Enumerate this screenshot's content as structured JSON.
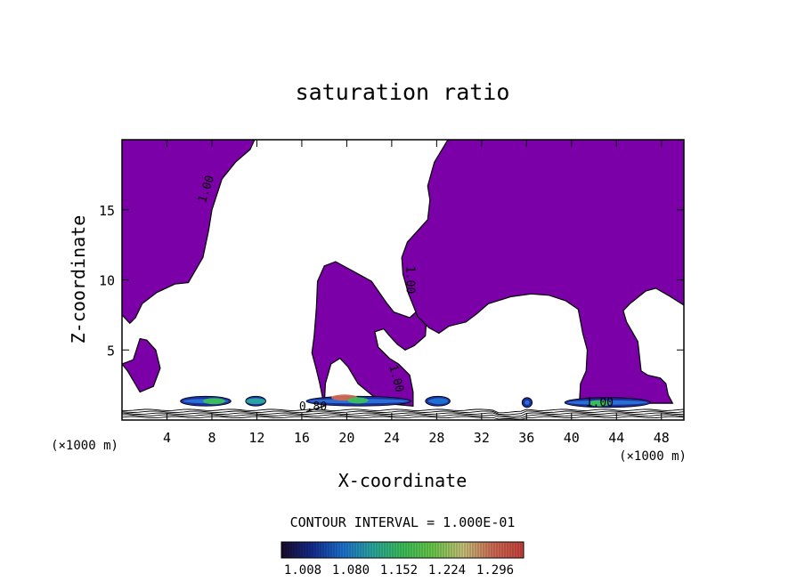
{
  "chart_data": {
    "type": "heatmap",
    "title": "saturation ratio",
    "xlabel": "X-coordinate",
    "ylabel": "Z-coordinate",
    "x_unit_left": "(×1000 m)",
    "x_unit_right": "(×1000 m)",
    "xlim": [
      0,
      50
    ],
    "ylim": [
      0,
      20
    ],
    "x_ticks": [
      4,
      8,
      12,
      16,
      20,
      24,
      28,
      32,
      36,
      40,
      44,
      48
    ],
    "y_ticks": [
      5,
      10,
      15
    ],
    "contour_interval_label": "CONTOUR INTERVAL = 1.000E-01",
    "colorbar": {
      "ticks": [
        "1.008",
        "1.080",
        "1.152",
        "1.224",
        "1.296"
      ],
      "colors": [
        "#1a0a2a",
        "#142b8c",
        "#1c6fd0",
        "#2aa7a0",
        "#3bbf5a",
        "#6ac84a",
        "#c7c27a",
        "#cf6a55",
        "#c8413a"
      ]
    },
    "contour_labels": [
      {
        "text": "1.00",
        "x": 7.8,
        "y": 16.4,
        "rot": -72
      },
      {
        "text": "1.00",
        "x": 25.3,
        "y": 10.0,
        "rot": 90
      },
      {
        "text": "1.00",
        "x": 24.1,
        "y": 2.9,
        "rot": 75
      },
      {
        "text": "0.80",
        "x": 17.0,
        "y": 0.7,
        "rot": 0
      },
      {
        "text": "1.00",
        "x": 42.5,
        "y": 1.0,
        "rot": 0
      }
    ],
    "region_color": "#7b00a8",
    "regions": [
      {
        "name": "upper-left",
        "points": [
          [
            0,
            20
          ],
          [
            11.8,
            20
          ],
          [
            11.4,
            19.3
          ],
          [
            10.1,
            18.4
          ],
          [
            8.9,
            17.2
          ],
          [
            8.0,
            15.0
          ],
          [
            7.7,
            13.5
          ],
          [
            7.2,
            11.6
          ],
          [
            5.9,
            9.8
          ],
          [
            4.7,
            9.7
          ],
          [
            3.1,
            9.1
          ],
          [
            1.8,
            8.3
          ],
          [
            1.2,
            7.3
          ],
          [
            0.7,
            6.9
          ],
          [
            0,
            7.5
          ]
        ]
      },
      {
        "name": "left-blob",
        "points": [
          [
            0.5,
            3.5
          ],
          [
            1.6,
            2.0
          ],
          [
            2.8,
            2.4
          ],
          [
            3.4,
            3.7
          ],
          [
            3.0,
            5.0
          ],
          [
            2.2,
            5.7
          ],
          [
            1.6,
            5.8
          ],
          [
            1.0,
            4.3
          ],
          [
            0,
            4.0
          ],
          [
            0.5,
            3.5
          ]
        ]
      },
      {
        "name": "center-tall",
        "points": [
          [
            16.4,
            0.6
          ],
          [
            18.0,
            1.0
          ],
          [
            17.6,
            2.6
          ],
          [
            17.3,
            3.6
          ],
          [
            16.9,
            4.8
          ],
          [
            17.1,
            6.0
          ],
          [
            17.3,
            8.0
          ],
          [
            17.4,
            9.9
          ],
          [
            18.0,
            11.0
          ],
          [
            19.0,
            11.3
          ],
          [
            20.4,
            10.7
          ],
          [
            22.2,
            9.9
          ],
          [
            23.6,
            8.3
          ],
          [
            24.2,
            7.7
          ],
          [
            25.6,
            7.3
          ],
          [
            26.7,
            8.1
          ],
          [
            27.1,
            7.2
          ],
          [
            27.0,
            6.0
          ],
          [
            26.0,
            5.3
          ],
          [
            25.2,
            5.0
          ],
          [
            24.5,
            5.4
          ],
          [
            23.7,
            6.1
          ],
          [
            23.3,
            6.5
          ],
          [
            22.5,
            6.3
          ],
          [
            22.8,
            5.2
          ],
          [
            23.8,
            4.4
          ],
          [
            24.6,
            4.0
          ],
          [
            25.6,
            3.2
          ],
          [
            25.9,
            2.0
          ],
          [
            25.9,
            1.0
          ],
          [
            23.2,
            1.2
          ],
          [
            22.2,
            1.8
          ],
          [
            21.0,
            2.6
          ],
          [
            20.1,
            3.8
          ],
          [
            19.4,
            4.4
          ],
          [
            18.6,
            4.0
          ],
          [
            18.1,
            2.6
          ],
          [
            18.0,
            1.0
          ]
        ]
      },
      {
        "name": "upper-right",
        "points": [
          [
            29.0,
            20
          ],
          [
            50,
            20
          ],
          [
            50,
            8.2
          ],
          [
            48.6,
            8.9
          ],
          [
            47.5,
            9.4
          ],
          [
            46.6,
            9.2
          ],
          [
            45.2,
            8.3
          ],
          [
            44.6,
            7.8
          ],
          [
            44.9,
            7.0
          ],
          [
            45.9,
            5.6
          ],
          [
            46.2,
            3.5
          ],
          [
            46.8,
            3.2
          ],
          [
            47.9,
            3.0
          ],
          [
            48.4,
            2.6
          ],
          [
            48.6,
            1.8
          ],
          [
            49.0,
            1.2
          ],
          [
            40.7,
            1.2
          ],
          [
            40.8,
            2.6
          ],
          [
            41.3,
            3.5
          ],
          [
            41.4,
            5.0
          ],
          [
            41.0,
            6.2
          ],
          [
            40.6,
            7.9
          ],
          [
            39.5,
            8.5
          ],
          [
            38.0,
            8.9
          ],
          [
            36.4,
            9.0
          ],
          [
            34.6,
            8.8
          ],
          [
            32.6,
            8.3
          ],
          [
            31.6,
            7.6
          ],
          [
            30.6,
            7.0
          ],
          [
            29.1,
            6.7
          ],
          [
            28.2,
            6.2
          ],
          [
            27.3,
            6.6
          ],
          [
            26.3,
            7.4
          ],
          [
            25.5,
            9.0
          ],
          [
            25.0,
            10.4
          ],
          [
            24.9,
            11.6
          ],
          [
            25.4,
            12.7
          ],
          [
            26.3,
            13.5
          ],
          [
            27.2,
            14.3
          ],
          [
            27.4,
            15.7
          ],
          [
            27.2,
            16.7
          ],
          [
            27.8,
            18.4
          ],
          [
            29.0,
            20
          ]
        ]
      }
    ],
    "bands": [
      {
        "x0": 5.2,
        "x1": 9.7,
        "y": 1.35
      },
      {
        "x0": 11.0,
        "x1": 12.8,
        "y": 1.35
      },
      {
        "x0": 16.4,
        "x1": 25.7,
        "y": 1.35
      },
      {
        "x0": 27.0,
        "x1": 29.2,
        "y": 1.35
      },
      {
        "x0": 35.6,
        "x1": 36.5,
        "y": 1.25
      },
      {
        "x0": 39.4,
        "x1": 47.0,
        "y": 1.25
      }
    ],
    "hot_spots": [
      {
        "x": 8.2,
        "y": 1.35,
        "level": 0.55
      },
      {
        "x": 11.9,
        "y": 1.35,
        "level": 0.35
      },
      {
        "x": 19.8,
        "y": 1.6,
        "level": 0.85
      },
      {
        "x": 21.0,
        "y": 1.4,
        "level": 0.45
      },
      {
        "x": 28.2,
        "y": 1.35,
        "level": 0.3
      },
      {
        "x": 42.5,
        "y": 1.2,
        "level": 0.5
      }
    ]
  }
}
